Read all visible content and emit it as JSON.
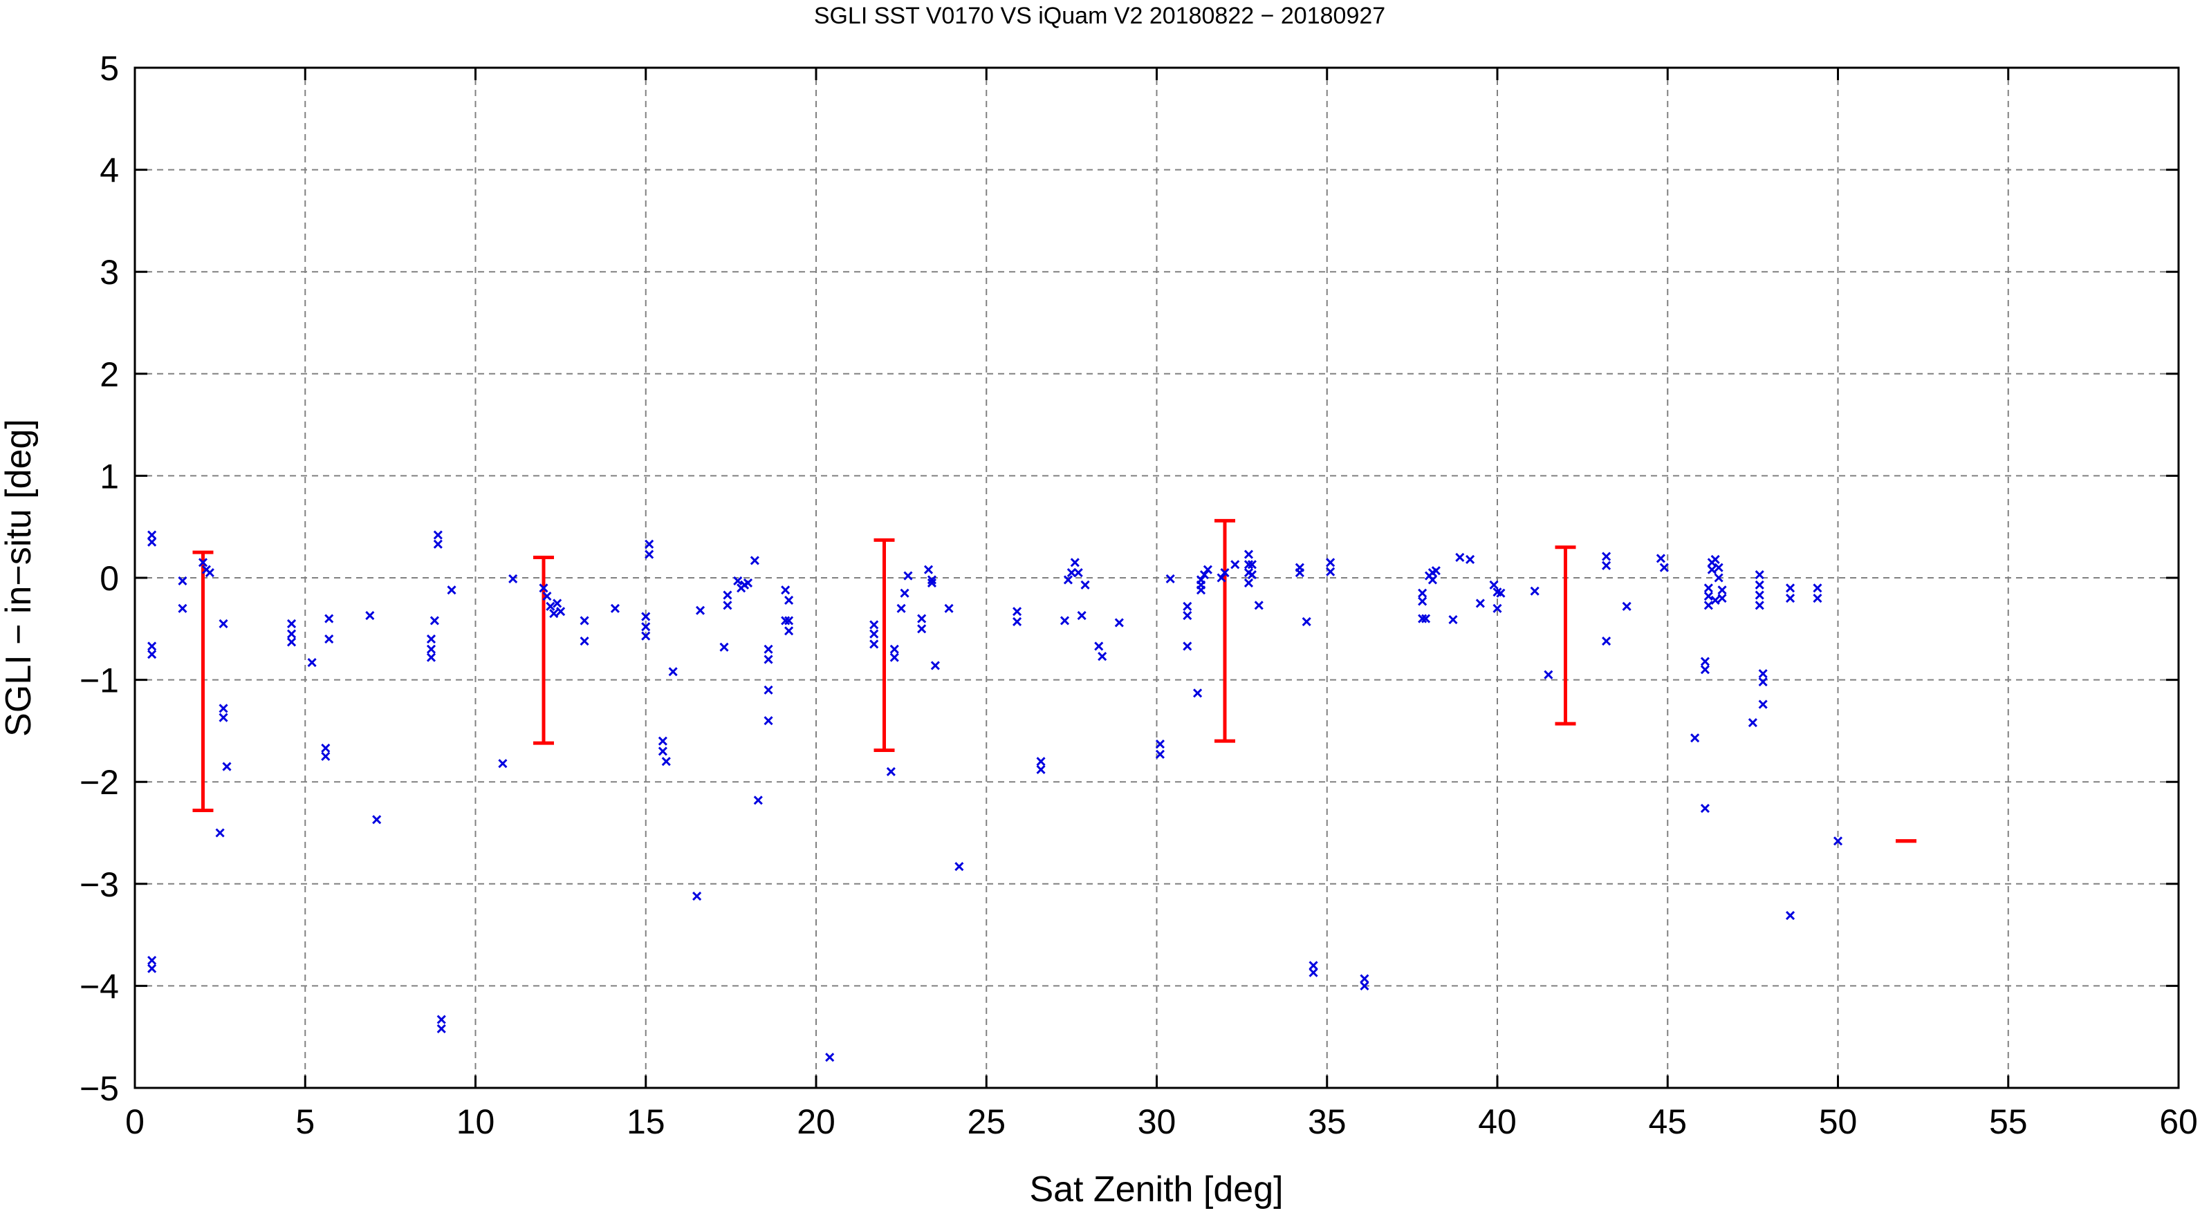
{
  "chart_data": {
    "type": "scatter",
    "title": "SGLI SST V0170 VS iQuam V2 20180822 − 20180927",
    "xlabel": "Sat Zenith [deg]",
    "ylabel": "SGLI − in−situ [deg]",
    "xlim": [
      0,
      60
    ],
    "ylim": [
      -5,
      5
    ],
    "xticks": [
      0,
      5,
      10,
      15,
      20,
      25,
      30,
      35,
      40,
      45,
      50,
      55,
      60
    ],
    "yticks": [
      -5,
      -4,
      -3,
      -2,
      -1,
      0,
      1,
      2,
      3,
      4,
      5
    ],
    "xtick_labels": [
      "0",
      "5",
      "10",
      "15",
      "20",
      "25",
      "30",
      "35",
      "40",
      "45",
      "50",
      "55",
      "60"
    ],
    "ytick_labels": [
      "−5",
      "−4",
      "−3",
      "−2",
      "−1",
      "0",
      "1",
      "2",
      "3",
      "4",
      "5"
    ],
    "grid": true,
    "colors": {
      "points": "#0000e0",
      "error_bars": "#ff0000",
      "grid": "#808080"
    },
    "series": [
      {
        "marker": "x",
        "points": [
          [
            0.5,
            0.42
          ],
          [
            0.5,
            0.35
          ],
          [
            0.5,
            -0.67
          ],
          [
            0.5,
            -0.75
          ],
          [
            0.5,
            -3.75
          ],
          [
            0.5,
            -3.83
          ],
          [
            1.4,
            -0.03
          ],
          [
            1.4,
            -0.3
          ],
          [
            2.0,
            0.15
          ],
          [
            2.1,
            0.08
          ],
          [
            2.2,
            0.05
          ],
          [
            2.5,
            -2.5
          ],
          [
            2.6,
            -0.45
          ],
          [
            2.6,
            -1.28
          ],
          [
            2.6,
            -1.37
          ],
          [
            2.7,
            -1.85
          ],
          [
            4.6,
            -0.45
          ],
          [
            4.6,
            -0.55
          ],
          [
            4.6,
            -0.63
          ],
          [
            5.2,
            -0.83
          ],
          [
            5.6,
            -1.67
          ],
          [
            5.6,
            -1.75
          ],
          [
            5.7,
            -0.4
          ],
          [
            5.7,
            -0.6
          ],
          [
            6.9,
            -0.37
          ],
          [
            7.1,
            -2.37
          ],
          [
            8.7,
            -0.6
          ],
          [
            8.7,
            -0.7
          ],
          [
            8.7,
            -0.78
          ],
          [
            8.8,
            -0.42
          ],
          [
            8.9,
            0.42
          ],
          [
            8.9,
            0.33
          ],
          [
            9.0,
            -4.33
          ],
          [
            9.0,
            -4.42
          ],
          [
            9.3,
            -0.12
          ],
          [
            10.8,
            -1.82
          ],
          [
            11.1,
            -0.01
          ],
          [
            12.0,
            -0.1
          ],
          [
            12.1,
            -0.18
          ],
          [
            12.2,
            -0.28
          ],
          [
            12.3,
            -0.35
          ],
          [
            12.4,
            -0.25
          ],
          [
            12.5,
            -0.33
          ],
          [
            13.2,
            -0.42
          ],
          [
            13.2,
            -0.62
          ],
          [
            14.1,
            -0.3
          ],
          [
            15.0,
            -0.38
          ],
          [
            15.0,
            -0.48
          ],
          [
            15.0,
            -0.57
          ],
          [
            15.1,
            0.33
          ],
          [
            15.1,
            0.23
          ],
          [
            15.5,
            -1.6
          ],
          [
            15.5,
            -1.7
          ],
          [
            15.6,
            -1.8
          ],
          [
            15.8,
            -0.92
          ],
          [
            16.5,
            -3.12
          ],
          [
            16.6,
            -0.32
          ],
          [
            17.3,
            -0.68
          ],
          [
            17.4,
            -0.17
          ],
          [
            17.4,
            -0.27
          ],
          [
            17.7,
            -0.03
          ],
          [
            17.8,
            -0.1
          ],
          [
            17.9,
            -0.07
          ],
          [
            18.0,
            -0.05
          ],
          [
            18.2,
            0.17
          ],
          [
            18.3,
            -2.18
          ],
          [
            18.6,
            -0.7
          ],
          [
            18.6,
            -0.8
          ],
          [
            18.6,
            -1.1
          ],
          [
            18.6,
            -1.4
          ],
          [
            19.1,
            -0.12
          ],
          [
            19.1,
            -0.42
          ],
          [
            19.2,
            -0.22
          ],
          [
            19.2,
            -0.42
          ],
          [
            19.2,
            -0.52
          ],
          [
            20.4,
            -4.7
          ],
          [
            21.7,
            -0.46
          ],
          [
            21.7,
            -0.55
          ],
          [
            21.7,
            -0.65
          ],
          [
            22.2,
            -1.9
          ],
          [
            22.3,
            -0.7
          ],
          [
            22.3,
            -0.78
          ],
          [
            22.5,
            -0.3
          ],
          [
            22.6,
            -0.15
          ],
          [
            22.7,
            0.02
          ],
          [
            23.1,
            -0.4
          ],
          [
            23.1,
            -0.5
          ],
          [
            23.3,
            0.08
          ],
          [
            23.4,
            -0.02
          ],
          [
            23.4,
            -0.05
          ],
          [
            23.5,
            -0.86
          ],
          [
            23.9,
            -0.3
          ],
          [
            24.2,
            -2.83
          ],
          [
            25.9,
            -0.33
          ],
          [
            25.9,
            -0.43
          ],
          [
            26.6,
            -1.8
          ],
          [
            26.6,
            -1.88
          ],
          [
            27.3,
            -0.42
          ],
          [
            27.4,
            -0.02
          ],
          [
            27.5,
            0.05
          ],
          [
            27.6,
            0.15
          ],
          [
            27.7,
            0.05
          ],
          [
            27.8,
            -0.37
          ],
          [
            27.9,
            -0.07
          ],
          [
            28.3,
            -0.67
          ],
          [
            28.4,
            -0.77
          ],
          [
            28.9,
            -0.44
          ],
          [
            30.1,
            -1.63
          ],
          [
            30.1,
            -1.73
          ],
          [
            30.4,
            -0.01
          ],
          [
            30.9,
            -0.28
          ],
          [
            30.9,
            -0.37
          ],
          [
            30.9,
            -0.67
          ],
          [
            31.2,
            -1.13
          ],
          [
            31.3,
            -0.02
          ],
          [
            31.3,
            -0.07
          ],
          [
            31.3,
            -0.12
          ],
          [
            31.4,
            0.03
          ],
          [
            31.5,
            0.08
          ],
          [
            31.9,
            0.0
          ],
          [
            32.0,
            0.05
          ],
          [
            32.3,
            0.13
          ],
          [
            32.7,
            0.23
          ],
          [
            32.7,
            0.13
          ],
          [
            32.7,
            0.05
          ],
          [
            32.7,
            -0.05
          ],
          [
            32.8,
            0.13
          ],
          [
            32.8,
            0.03
          ],
          [
            33.0,
            -0.27
          ],
          [
            34.2,
            0.05
          ],
          [
            34.2,
            0.1
          ],
          [
            34.4,
            -0.43
          ],
          [
            34.6,
            -3.8
          ],
          [
            34.6,
            -3.87
          ],
          [
            35.1,
            0.15
          ],
          [
            35.1,
            0.06
          ],
          [
            36.1,
            -3.93
          ],
          [
            36.1,
            -4.0
          ],
          [
            37.8,
            -0.4
          ],
          [
            37.8,
            -0.15
          ],
          [
            37.8,
            -0.23
          ],
          [
            37.9,
            -0.4
          ],
          [
            38.0,
            0.02
          ],
          [
            38.1,
            0.05
          ],
          [
            38.1,
            -0.02
          ],
          [
            38.2,
            0.07
          ],
          [
            38.7,
            -0.41
          ],
          [
            38.9,
            0.2
          ],
          [
            39.2,
            0.18
          ],
          [
            39.5,
            -0.25
          ],
          [
            39.9,
            -0.07
          ],
          [
            40.0,
            -0.14
          ],
          [
            40.0,
            -0.3
          ],
          [
            40.1,
            -0.15
          ],
          [
            41.1,
            -0.13
          ],
          [
            41.5,
            -0.95
          ],
          [
            43.2,
            0.21
          ],
          [
            43.2,
            0.12
          ],
          [
            43.2,
            -0.62
          ],
          [
            43.8,
            -0.28
          ],
          [
            44.8,
            0.19
          ],
          [
            44.9,
            0.1
          ],
          [
            45.8,
            -1.57
          ],
          [
            46.1,
            -0.82
          ],
          [
            46.1,
            -0.9
          ],
          [
            46.1,
            -2.26
          ],
          [
            46.2,
            -0.1
          ],
          [
            46.2,
            -0.18
          ],
          [
            46.2,
            -0.27
          ],
          [
            46.3,
            0.15
          ],
          [
            46.3,
            0.08
          ],
          [
            46.4,
            -0.22
          ],
          [
            46.4,
            0.18
          ],
          [
            46.5,
            0.1
          ],
          [
            46.5,
            0.0
          ],
          [
            46.6,
            -0.12
          ],
          [
            46.6,
            -0.2
          ],
          [
            47.5,
            -1.42
          ],
          [
            47.7,
            0.03
          ],
          [
            47.7,
            -0.07
          ],
          [
            47.7,
            -0.17
          ],
          [
            47.7,
            -0.27
          ],
          [
            47.8,
            -0.94
          ],
          [
            47.8,
            -1.02
          ],
          [
            47.8,
            -1.24
          ],
          [
            48.6,
            -0.1
          ],
          [
            48.6,
            -0.2
          ],
          [
            48.6,
            -3.31
          ],
          [
            49.4,
            -0.1
          ],
          [
            49.4,
            -0.2
          ],
          [
            50.0,
            -2.58
          ]
        ]
      }
    ],
    "error_bars": [
      {
        "x": 2,
        "ylow": -2.28,
        "yhigh": 0.25
      },
      {
        "x": 12,
        "ylow": -1.62,
        "yhigh": 0.2
      },
      {
        "x": 22,
        "ylow": -1.69,
        "yhigh": 0.37
      },
      {
        "x": 32,
        "ylow": -1.6,
        "yhigh": 0.56
      },
      {
        "x": 42,
        "ylow": -1.43,
        "yhigh": 0.3
      },
      {
        "x": 52,
        "ylow": -2.58,
        "yhigh": -2.58
      }
    ]
  }
}
